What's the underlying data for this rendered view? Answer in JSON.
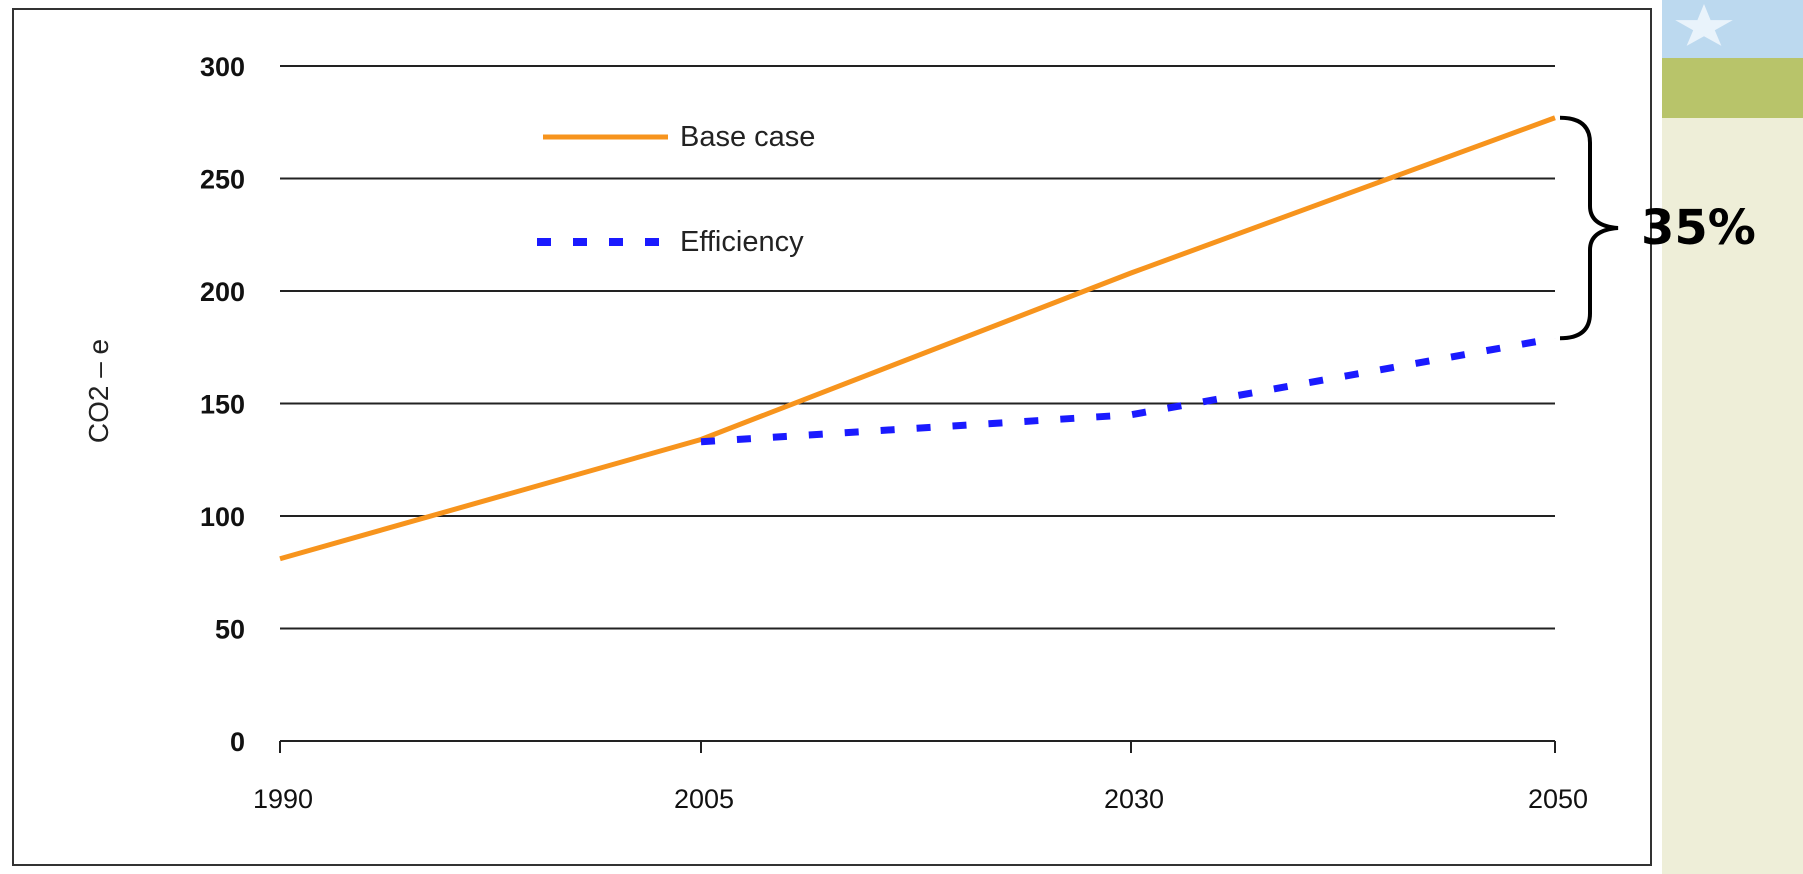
{
  "chart_data": {
    "type": "line",
    "title": "",
    "xlabel": "",
    "ylabel": "CO2 – e",
    "x_ticks": [
      "1990",
      "2005",
      "2030",
      "2050"
    ],
    "y_ticks": [
      0,
      50,
      100,
      150,
      200,
      250,
      300
    ],
    "ylim": [
      0,
      300
    ],
    "grid": true,
    "legend_position": "top-left",
    "series": [
      {
        "name": "Base case",
        "color": "#f7941d",
        "style": "solid",
        "points": [
          [
            "1990",
            81
          ],
          [
            "2005",
            134
          ],
          [
            "2030",
            208
          ],
          [
            "2050",
            277
          ]
        ]
      },
      {
        "name": "Efficiency",
        "color": "#1a1aff",
        "style": "dashed",
        "points": [
          [
            "2005",
            133
          ],
          [
            "2030",
            145
          ],
          [
            "2050",
            179
          ]
        ]
      }
    ],
    "annotations": [
      {
        "text": "35%",
        "type": "brace",
        "x": "2050",
        "from": 179,
        "to": 277
      }
    ]
  },
  "decor": {
    "icon": "landscape-decoration-icon"
  }
}
